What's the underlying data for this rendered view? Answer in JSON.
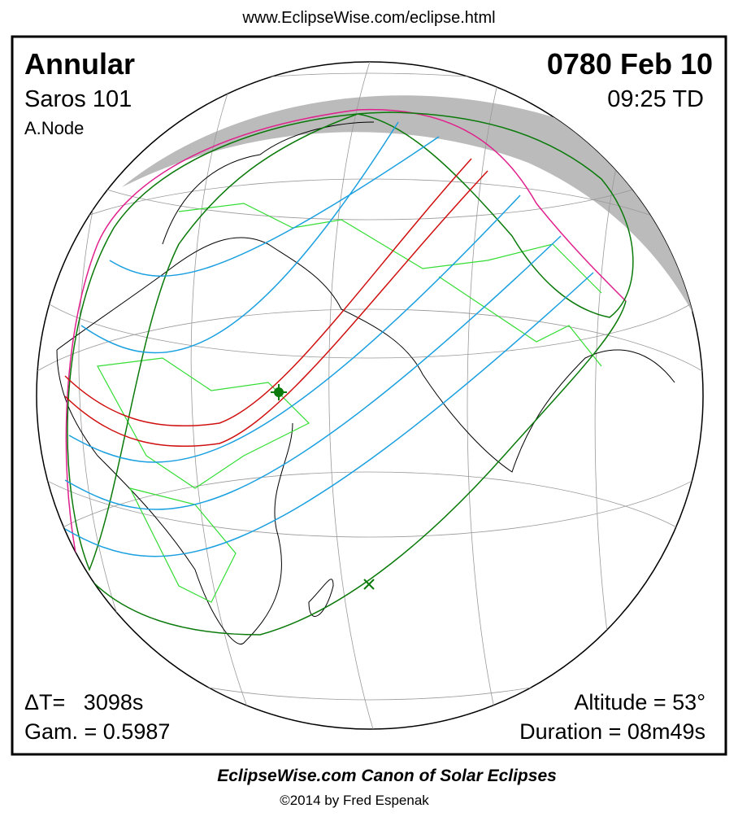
{
  "header": {
    "url": "www.EclipseWise.com/eclipse.html"
  },
  "eclipse": {
    "type": "Annular",
    "saros": "Saros 101",
    "node": "A.Node",
    "date": "0780 Feb 10",
    "time": "09:25 TD"
  },
  "parameters": {
    "delta_t": "ΔT=   3098s",
    "gamma": "Gam. = 0.5987",
    "altitude": "Altitude = 53°",
    "duration": "Duration = 08m49s"
  },
  "footer": {
    "title": "EclipseWise.com Canon of Solar Eclipses",
    "copyright": "©2014 by Fred Espenak"
  }
}
